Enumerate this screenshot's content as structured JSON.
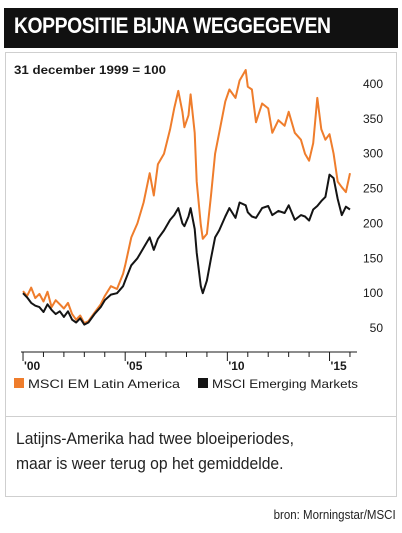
{
  "title": "KOPPOSITIE BIJNA WEGGEGEVEN",
  "caption": {
    "line1": "Latijns-Amerika had twee bloeiperiodes,",
    "line2": "maar is weer terug op het gemiddelde."
  },
  "source": "bron: Morningstar/MSCI",
  "colors": {
    "latin_america": "#ef7d2c",
    "emerging": "#141414",
    "title_bg": "#111111"
  },
  "chart_data": {
    "type": "line",
    "note": "31 december 1999 = 100",
    "x_ticks": [
      "'00",
      "'05",
      "'10",
      "'15"
    ],
    "x_tick_values": [
      2000,
      2005,
      2010,
      2015
    ],
    "xlim": [
      1999.95,
      2016.1
    ],
    "y_ticks": [
      50,
      100,
      150,
      200,
      250,
      300,
      350,
      400
    ],
    "ylim": [
      30,
      420
    ],
    "grid": false,
    "legend_position": "bottom",
    "series": [
      {
        "name": "MSCI EM Latin America",
        "color": "#ef7d2c",
        "x": [
          2000.0,
          2000.2,
          2000.4,
          2000.6,
          2000.8,
          2001.0,
          2001.2,
          2001.4,
          2001.6,
          2001.8,
          2002.0,
          2002.2,
          2002.4,
          2002.6,
          2002.8,
          2003.0,
          2003.2,
          2003.5,
          2003.8,
          2004.0,
          2004.3,
          2004.6,
          2004.9,
          2005.0,
          2005.3,
          2005.6,
          2005.9,
          2006.2,
          2006.4,
          2006.6,
          2006.9,
          2007.2,
          2007.4,
          2007.6,
          2007.8,
          2007.9,
          2008.1,
          2008.2,
          2008.4,
          2008.5,
          2008.7,
          2008.8,
          2009.0,
          2009.2,
          2009.4,
          2009.6,
          2009.9,
          2010.1,
          2010.4,
          2010.6,
          2010.9,
          2011.0,
          2011.2,
          2011.4,
          2011.7,
          2012.0,
          2012.2,
          2012.5,
          2012.8,
          2013.0,
          2013.3,
          2013.6,
          2013.8,
          2014.0,
          2014.2,
          2014.4,
          2014.6,
          2014.8,
          2015.0,
          2015.2,
          2015.4,
          2015.6,
          2015.8,
          2016.0
        ],
        "values": [
          103,
          96,
          108,
          93,
          99,
          88,
          102,
          80,
          90,
          84,
          78,
          86,
          70,
          62,
          68,
          57,
          60,
          72,
          84,
          96,
          110,
          106,
          128,
          140,
          180,
          200,
          230,
          272,
          240,
          285,
          300,
          335,
          365,
          390,
          360,
          338,
          355,
          385,
          330,
          260,
          198,
          178,
          185,
          240,
          300,
          330,
          375,
          392,
          380,
          405,
          420,
          396,
          392,
          345,
          372,
          365,
          330,
          348,
          340,
          360,
          330,
          320,
          300,
          290,
          315,
          380,
          335,
          320,
          328,
          300,
          260,
          252,
          245,
          272
        ]
      },
      {
        "name": "MSCI Emerging Markets",
        "color": "#141414",
        "x": [
          2000.0,
          2000.2,
          2000.4,
          2000.6,
          2000.8,
          2001.0,
          2001.2,
          2001.4,
          2001.6,
          2001.8,
          2002.0,
          2002.2,
          2002.4,
          2002.6,
          2002.8,
          2003.0,
          2003.2,
          2003.5,
          2003.8,
          2004.0,
          2004.3,
          2004.6,
          2004.9,
          2005.0,
          2005.3,
          2005.6,
          2005.9,
          2006.2,
          2006.4,
          2006.6,
          2006.9,
          2007.2,
          2007.4,
          2007.6,
          2007.8,
          2007.9,
          2008.1,
          2008.2,
          2008.4,
          2008.5,
          2008.7,
          2008.8,
          2009.0,
          2009.2,
          2009.4,
          2009.6,
          2009.9,
          2010.1,
          2010.4,
          2010.6,
          2010.9,
          2011.0,
          2011.2,
          2011.4,
          2011.7,
          2012.0,
          2012.2,
          2012.5,
          2012.8,
          2013.0,
          2013.3,
          2013.6,
          2013.8,
          2014.0,
          2014.2,
          2014.4,
          2014.6,
          2014.8,
          2015.0,
          2015.2,
          2015.4,
          2015.6,
          2015.8,
          2016.0
        ],
        "values": [
          100,
          94,
          86,
          82,
          80,
          73,
          84,
          76,
          70,
          74,
          66,
          74,
          62,
          58,
          64,
          55,
          58,
          70,
          80,
          90,
          98,
          100,
          110,
          118,
          140,
          150,
          165,
          180,
          162,
          178,
          190,
          205,
          212,
          222,
          200,
          196,
          210,
          222,
          192,
          158,
          110,
          100,
          118,
          150,
          180,
          190,
          210,
          222,
          208,
          230,
          226,
          216,
          210,
          208,
          222,
          225,
          212,
          218,
          215,
          226,
          205,
          212,
          210,
          204,
          220,
          225,
          232,
          238,
          270,
          265,
          235,
          212,
          224,
          220
        ]
      }
    ]
  }
}
